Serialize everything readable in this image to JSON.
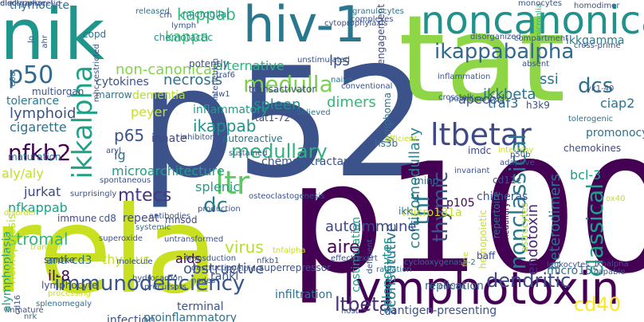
{
  "words": [
    {
      "text": "p52",
      "color": "#3b528b"
    },
    {
      "text": "tat",
      "color": "#8ed645"
    },
    {
      "text": "p100",
      "color": "#440154"
    },
    {
      "text": "rela",
      "color": "#c8e020"
    },
    {
      "text": "nik",
      "color": "#1f968b"
    },
    {
      "text": "lymphotoxin",
      "color": "#440154"
    },
    {
      "text": "hiv-1",
      "color": "#2a788e"
    },
    {
      "text": "noncanonical",
      "color": "#21918c"
    },
    {
      "text": "ikkalpha",
      "color": "#1fa188"
    },
    {
      "text": "ltbetar",
      "color": "#3e4989"
    },
    {
      "text": "ikappabalpha",
      "color": "#31688e"
    },
    {
      "text": "immunodeficiency",
      "color": "#39568c"
    },
    {
      "text": "ltr",
      "color": "#5ec962"
    },
    {
      "text": "p50",
      "color": "#31688e"
    },
    {
      "text": "medulla",
      "color": "#7ad151"
    },
    {
      "text": "nfkb2",
      "color": "#440154"
    },
    {
      "text": "mtecs",
      "color": "#453781"
    },
    {
      "text": "dcs",
      "color": "#2c728e"
    },
    {
      "text": "kappab",
      "color": "#35b779"
    },
    {
      "text": "thymic",
      "color": "#3b528b"
    },
    {
      "text": "nonclassical",
      "color": "#2a788e"
    },
    {
      "text": "classical",
      "color": "#1fa188"
    },
    {
      "text": "dendritic",
      "color": "#3e4989"
    },
    {
      "text": "cd40",
      "color": "#fde725"
    },
    {
      "text": "ltbeta",
      "color": "#472d7b"
    },
    {
      "text": "medullary",
      "color": "#2db27d"
    },
    {
      "text": "p65",
      "color": "#3b528b"
    },
    {
      "text": "dc",
      "color": "#277f8e"
    },
    {
      "text": "corticomedullary",
      "color": "#26828e"
    },
    {
      "text": "ikkbeta",
      "color": "#2c728e"
    },
    {
      "text": "kappa",
      "color": "#4ac16d"
    },
    {
      "text": "necrosis",
      "color": "#2c728e"
    },
    {
      "text": "non-canonical",
      "color": "#84d44b"
    },
    {
      "text": "ikappab",
      "color": "#21918c"
    },
    {
      "text": "microarchitecture",
      "color": "#1f9e89"
    },
    {
      "text": "tnf",
      "color": "#2a788e"
    },
    {
      "text": "aire",
      "color": "#440154"
    },
    {
      "text": "virus",
      "color": "#b5de2b"
    },
    {
      "text": "jurkat",
      "color": "#3e4989"
    },
    {
      "text": "nfkappab",
      "color": "#1f9e89"
    },
    {
      "text": "stromal",
      "color": "#35b779"
    },
    {
      "text": "alymphoplasia",
      "color": "#1f9e89"
    },
    {
      "text": "aly/aly",
      "color": "#c2df23"
    },
    {
      "text": "traf3",
      "color": "#31688e"
    },
    {
      "text": "ikkgamma",
      "color": "#277f8e"
    },
    {
      "text": "constitutive",
      "color": "#2c728e"
    },
    {
      "text": "autoimmune",
      "color": "#3e4989"
    },
    {
      "text": "heterodimers",
      "color": "#2c728e"
    },
    {
      "text": "endotoxin",
      "color": "#482878"
    },
    {
      "text": "bcl-3",
      "color": "#1f9e89"
    },
    {
      "text": "ssi",
      "color": "#2c728e"
    },
    {
      "text": "lymphoid",
      "color": "#3b528b"
    },
    {
      "text": "cigarette",
      "color": "#2c728e"
    },
    {
      "text": "tolerance",
      "color": "#2a788e"
    },
    {
      "text": "peyer",
      "color": "#c8e020"
    },
    {
      "text": "spleen",
      "color": "#21918c"
    },
    {
      "text": "dimers",
      "color": "#35b779"
    },
    {
      "text": "alternative",
      "color": "#2db27d"
    },
    {
      "text": "lps",
      "color": "#3b528b"
    },
    {
      "text": "inflammatory",
      "color": "#1f9e89"
    },
    {
      "text": "obstructive",
      "color": "#3b528b"
    },
    {
      "text": "aids",
      "color": "#440154"
    },
    {
      "text": "thymus",
      "color": "#c2df23"
    },
    {
      "text": "splenic",
      "color": "#1f9e89"
    },
    {
      "text": "tat1-72",
      "color": "#3e4989"
    },
    {
      "text": "apeced",
      "color": "#3b528b"
    },
    {
      "text": "ciap2",
      "color": "#2c728e"
    },
    {
      "text": "promonocyte",
      "color": "#2c728e"
    },
    {
      "text": "chemokines",
      "color": "#3e4989"
    },
    {
      "text": "repeat",
      "color": "#3e4989"
    },
    {
      "text": "costimulation",
      "color": "#1fa188"
    },
    {
      "text": "splenocytes",
      "color": "#21918c"
    },
    {
      "text": "replication",
      "color": "#31688e"
    },
    {
      "text": "dementia",
      "color": "#b5de2b"
    },
    {
      "text": "thymocyte",
      "color": "#2c728e"
    },
    {
      "text": "infiltration",
      "color": "#2c728e"
    },
    {
      "text": "antigen-presenting",
      "color": "#3b528b"
    },
    {
      "text": "il-8",
      "color": "#440154"
    },
    {
      "text": "anti-cd3",
      "color": "#2c728e"
    },
    {
      "text": "lymphocyte",
      "color": "#3e4989"
    },
    {
      "text": "rankl",
      "color": "#3b528b"
    },
    {
      "text": "superrepressor",
      "color": "#3b528b"
    },
    {
      "text": "autoreactive",
      "color": "#2c728e"
    },
    {
      "text": "p105",
      "color": "#440154"
    },
    {
      "text": "ig",
      "color": "#2c728e"
    },
    {
      "text": "imdc",
      "color": "#3e4989"
    },
    {
      "text": "marrow",
      "color": "#2c728e"
    },
    {
      "text": "cytokines",
      "color": "#3b528b"
    },
    {
      "text": "multiorgan",
      "color": "#3b528b"
    },
    {
      "text": "transactivator",
      "color": "#3e4989"
    },
    {
      "text": "maturation",
      "color": "#2c728e"
    },
    {
      "text": "microglial",
      "color": "#21918c"
    },
    {
      "text": "innate",
      "color": "#3e4989"
    },
    {
      "text": "chemoattractant",
      "color": "#3b528b"
    },
    {
      "text": "microglia",
      "color": "#35b779"
    },
    {
      "text": "chimeras",
      "color": "#3b528b"
    },
    {
      "text": "micro181a",
      "color": "#c2df23"
    },
    {
      "text": "micro155",
      "color": "#2c728e"
    },
    {
      "text": "mnsod",
      "color": "#3e4989"
    },
    {
      "text": "hemopoietic",
      "color": "#c8e020"
    },
    {
      "text": "repertoire",
      "color": "#2c728e"
    },
    {
      "text": "extramedullary",
      "color": "#440154"
    },
    {
      "text": "astrocytes",
      "color": "#b5de2b"
    },
    {
      "text": "h3k9",
      "color": "#3b528b"
    },
    {
      "text": "cd11c",
      "color": "#3b528b"
    },
    {
      "text": "minp",
      "color": "#2c728e"
    },
    {
      "text": "hs3b",
      "color": "#2c728e"
    },
    {
      "text": "tnfalpha",
      "color": "#c8e020"
    },
    {
      "text": "ikk",
      "color": "#2c728e"
    },
    {
      "text": "terminal",
      "color": "#3b528b"
    },
    {
      "text": "infection",
      "color": "#3b528b"
    },
    {
      "text": "proinflammatory",
      "color": "#2c728e"
    },
    {
      "text": "cd8",
      "color": "#3b528b"
    },
    {
      "text": "immune",
      "color": "#3e4989"
    },
    {
      "text": "smoke",
      "color": "#3b528b"
    },
    {
      "text": "baff",
      "color": "#3e4989"
    },
    {
      "text": "cd4",
      "color": "#3e4989"
    },
    {
      "text": "copd",
      "color": "#2c728e"
    },
    {
      "text": "chemotactic",
      "color": "#21918c"
    },
    {
      "text": "engagement",
      "color": "#3e4989"
    },
    {
      "text": "potently",
      "color": "#3b528b"
    },
    {
      "text": "hemopoiesis",
      "color": "#b5de2b"
    },
    {
      "text": "lymphoma",
      "color": "#2c728e"
    },
    {
      "text": "interplay",
      "color": "#c8e020"
    },
    {
      "text": "tolerogenic",
      "color": "#2c728e"
    },
    {
      "text": "cyclooxygenase-2",
      "color": "#2c728e"
    },
    {
      "text": "radiation",
      "color": "#2c728e"
    },
    {
      "text": "ox40",
      "color": "#c8e020"
    },
    {
      "text": "released",
      "color": "#2c728e"
    },
    {
      "text": "monocytes",
      "color": "#3b528b"
    },
    {
      "text": "homodimer",
      "color": "#3b528b"
    },
    {
      "text": "granulocytes",
      "color": "#2c728e"
    },
    {
      "text": "complexes",
      "color": "#3b528b"
    },
    {
      "text": "disorganized",
      "color": "#3b528b"
    },
    {
      "text": "compartment",
      "color": "#3b528b"
    },
    {
      "text": "cross-prime",
      "color": "#3b528b"
    },
    {
      "text": "unstimulated",
      "color": "#3b528b"
    },
    {
      "text": "interleukin",
      "color": "#3b528b"
    },
    {
      "text": "traf6",
      "color": "#3b528b"
    },
    {
      "text": "aw1",
      "color": "#3b528b"
    },
    {
      "text": "naive",
      "color": "#2c728e"
    },
    {
      "text": "conventional",
      "color": "#3b528b"
    },
    {
      "text": "crosstalk",
      "color": "#3b528b"
    },
    {
      "text": "pulmonary",
      "color": "#3b528b"
    },
    {
      "text": "yk1-40",
      "color": "#3b528b"
    },
    {
      "text": "believed",
      "color": "#2c728e"
    },
    {
      "text": "efficient",
      "color": "#c8e020"
    },
    {
      "text": "inflammation",
      "color": "#3b528b"
    },
    {
      "text": "absent",
      "color": "#3b528b"
    },
    {
      "text": "p50b",
      "color": "#3b528b"
    },
    {
      "text": "invariant",
      "color": "#3b528b"
    },
    {
      "text": "adaptive",
      "color": "#3b528b"
    },
    {
      "text": "inhibitory",
      "color": "#3b528b"
    },
    {
      "text": "sustained",
      "color": "#3b528b"
    },
    {
      "text": "aryl",
      "color": "#3b528b"
    },
    {
      "text": "spontaneous",
      "color": "#3b528b"
    },
    {
      "text": "surprisingly",
      "color": "#3b528b"
    },
    {
      "text": "production",
      "color": "#3b528b"
    },
    {
      "text": "antibodies",
      "color": "#3b528b"
    },
    {
      "text": "osteoclastogenesis",
      "color": "#3b528b"
    },
    {
      "text": "disorder",
      "color": "#c8e020"
    },
    {
      "text": "systemic",
      "color": "#2c728e"
    },
    {
      "text": "transfer",
      "color": "#c8e020"
    },
    {
      "text": "superoxide",
      "color": "#3b528b"
    },
    {
      "text": "molecule",
      "color": "#3b528b"
    },
    {
      "text": "nfkb1",
      "color": "#3b528b"
    },
    {
      "text": "untransformed",
      "color": "#3b528b"
    },
    {
      "text": "hydrocarbon",
      "color": "#3b528b"
    },
    {
      "text": "precursors",
      "color": "#3b528b"
    },
    {
      "text": "myeloid",
      "color": "#3b528b"
    },
    {
      "text": "nodes",
      "color": "#3b528b"
    },
    {
      "text": "processing",
      "color": "#c8e020"
    },
    {
      "text": "splenomegaly",
      "color": "#2c728e"
    },
    {
      "text": "immature",
      "color": "#3b528b"
    },
    {
      "text": "cd16",
      "color": "#3b528b"
    },
    {
      "text": "nrk",
      "color": "#2c728e"
    },
    {
      "text": "host",
      "color": "#3b528b"
    },
    {
      "text": "exert",
      "color": "#3b528b"
    },
    {
      "text": "ikbalpha",
      "color": "#3b528b"
    },
    {
      "text": "capable",
      "color": "#3b528b"
    },
    {
      "text": "leukocytes",
      "color": "#3b528b"
    },
    {
      "text": "edema",
      "color": "#3b528b"
    },
    {
      "text": "lymph",
      "color": "#3b528b"
    },
    {
      "text": "crh",
      "color": "#3b528b"
    },
    {
      "text": "lo",
      "color": "#3b528b"
    },
    {
      "text": "ahr",
      "color": "#3b528b"
    },
    {
      "text": "e0a",
      "color": "#2c728e"
    },
    {
      "text": "mhc-restricted",
      "color": "#3b528b"
    },
    {
      "text": "cytoprophylaxis",
      "color": "#3b528b"
    },
    {
      "text": "deficient",
      "color": "#3b528b"
    },
    {
      "text": "fine",
      "color": "#c8e020"
    },
    {
      "text": "effector",
      "color": "#3b528b"
    },
    {
      "text": "transduction",
      "color": "#3b528b"
    },
    {
      "text": "destruction",
      "color": "#3b528b"
    },
    {
      "text": "electrophoretic",
      "color": "#3b528b"
    },
    {
      "text": "disorganize",
      "color": "#3b528b"
    }
  ]
}
